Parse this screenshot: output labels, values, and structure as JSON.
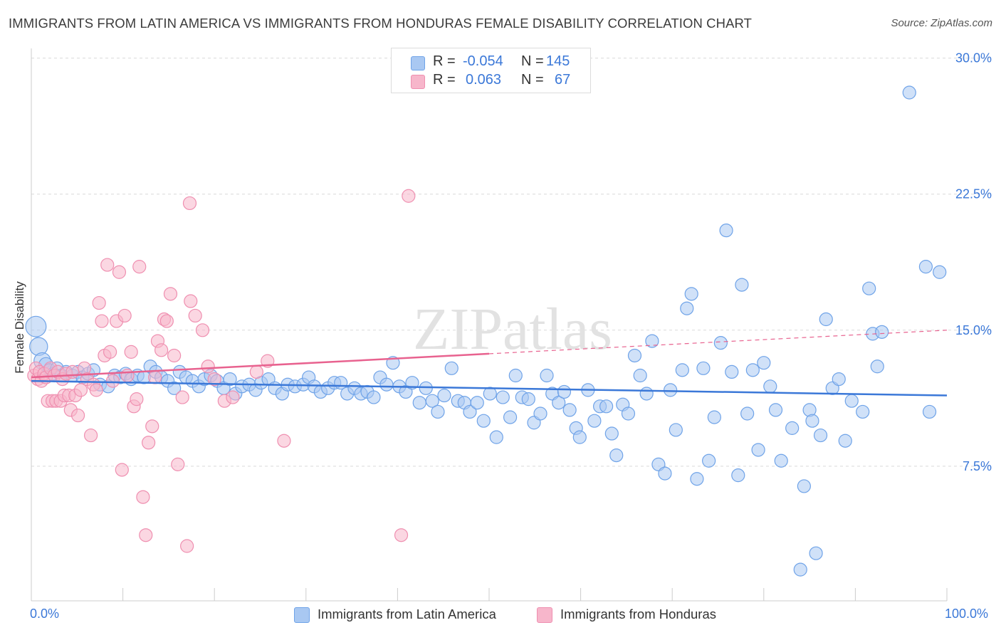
{
  "title": "IMMIGRANTS FROM LATIN AMERICA VS IMMIGRANTS FROM HONDURAS FEMALE DISABILITY CORRELATION CHART",
  "source": "Source: ZipAtlas.com",
  "watermark": "ZIPatlas",
  "legend_top": {
    "rows": [
      {
        "r_label": "R =",
        "r_value": "-0.054",
        "n_label": "N =",
        "n_value": "145",
        "color": "#a9c8f2"
      },
      {
        "r_label": "R =",
        "r_value": "0.063",
        "n_label": "N =",
        "n_value": "67",
        "color": "#f7b6cb"
      }
    ]
  },
  "chart_data": {
    "type": "scatter",
    "ylabel": "Female Disability",
    "xlim": [
      0,
      100
    ],
    "ylim": [
      0,
      30.5
    ],
    "x_tick_labels": {
      "left": "0.0%",
      "right": "100.0%"
    },
    "y_ticks": [
      {
        "value": 7.5,
        "label": "7.5%"
      },
      {
        "value": 15.0,
        "label": "15.0%"
      },
      {
        "value": 22.5,
        "label": "22.5%"
      },
      {
        "value": 30.0,
        "label": "30.0%"
      }
    ],
    "grid": "horizontal dashed",
    "series": [
      {
        "name": "Immigrants from Latin America",
        "color": "#6fa3e8",
        "fill": "#a9c8f2",
        "trend": {
          "x0": 0,
          "y0": 12.2,
          "x1": 100,
          "y1": 11.4,
          "color": "#3b78d8"
        },
        "points": [
          [
            0.5,
            15.2,
            1.6
          ],
          [
            0.8,
            14.1,
            1.4
          ],
          [
            1.2,
            13.3,
            1.3
          ],
          [
            1.6,
            13.1,
            1.1
          ],
          [
            2.0,
            12.8,
            1.0
          ],
          [
            2.4,
            12.6,
            1.0
          ],
          [
            2.8,
            12.9,
            1.0
          ],
          [
            3.3,
            12.5,
            1.0
          ],
          [
            3.8,
            12.7,
            1.0
          ],
          [
            4.5,
            12.5,
            1.0
          ],
          [
            5.1,
            12.7,
            1.0
          ],
          [
            5.6,
            12.4,
            1.0
          ],
          [
            6.2,
            12.6,
            1.0
          ],
          [
            6.8,
            12.8,
            1.0
          ],
          [
            7.5,
            12.0,
            1.0
          ],
          [
            8.4,
            11.9,
            1.0
          ],
          [
            9.1,
            12.5,
            1.0
          ],
          [
            9.7,
            12.4,
            1.0
          ],
          [
            10.3,
            12.6,
            1.0
          ],
          [
            10.9,
            12.3,
            1.0
          ],
          [
            11.6,
            12.5,
            1.0
          ],
          [
            12.3,
            12.4,
            1.0
          ],
          [
            13.0,
            13.0,
            1.0
          ],
          [
            13.6,
            12.7,
            1.0
          ],
          [
            14.2,
            12.4,
            1.0
          ],
          [
            14.9,
            12.2,
            1.0
          ],
          [
            15.6,
            11.8,
            1.0
          ],
          [
            16.2,
            12.7,
            1.0
          ],
          [
            16.9,
            12.4,
            1.0
          ],
          [
            17.6,
            12.2,
            1.0
          ],
          [
            18.3,
            11.9,
            1.0
          ],
          [
            18.9,
            12.3,
            1.0
          ],
          [
            19.6,
            12.5,
            1.0
          ],
          [
            20.3,
            12.2,
            1.0
          ],
          [
            21.0,
            11.8,
            1.0
          ],
          [
            21.7,
            12.3,
            1.0
          ],
          [
            22.3,
            11.5,
            1.0
          ],
          [
            23.0,
            11.9,
            1.0
          ],
          [
            23.8,
            12.0,
            1.0
          ],
          [
            24.5,
            11.7,
            1.0
          ],
          [
            25.1,
            12.1,
            1.0
          ],
          [
            25.9,
            12.3,
            1.0
          ],
          [
            26.6,
            11.8,
            1.0
          ],
          [
            27.4,
            11.5,
            1.0
          ],
          [
            28.0,
            12.0,
            1.0
          ],
          [
            28.8,
            11.9,
            1.0
          ],
          [
            29.7,
            12.0,
            1.0
          ],
          [
            30.3,
            12.4,
            1.0
          ],
          [
            30.9,
            11.9,
            1.0
          ],
          [
            31.6,
            11.6,
            1.0
          ],
          [
            32.4,
            11.8,
            1.0
          ],
          [
            33.1,
            12.1,
            1.0
          ],
          [
            33.8,
            12.1,
            1.0
          ],
          [
            34.5,
            11.5,
            1.0
          ],
          [
            35.3,
            11.8,
            1.0
          ],
          [
            36.0,
            11.5,
            1.0
          ],
          [
            36.7,
            11.6,
            1.0
          ],
          [
            37.4,
            11.3,
            1.0
          ],
          [
            38.1,
            12.4,
            1.0
          ],
          [
            38.8,
            12.0,
            1.0
          ],
          [
            39.5,
            13.2,
            1.0
          ],
          [
            40.2,
            11.9,
            1.0
          ],
          [
            40.9,
            11.6,
            1.0
          ],
          [
            41.6,
            12.1,
            1.0
          ],
          [
            42.4,
            11.0,
            1.0
          ],
          [
            43.1,
            11.8,
            1.0
          ],
          [
            43.8,
            11.1,
            1.0
          ],
          [
            44.4,
            10.5,
            1.0
          ],
          [
            45.1,
            11.4,
            1.0
          ],
          [
            45.9,
            12.9,
            1.0
          ],
          [
            46.6,
            11.1,
            1.0
          ],
          [
            47.3,
            11.0,
            1.0
          ],
          [
            47.9,
            10.5,
            1.0
          ],
          [
            48.7,
            11.0,
            1.0
          ],
          [
            49.4,
            10.0,
            1.0
          ],
          [
            50.1,
            11.5,
            1.0
          ],
          [
            50.8,
            9.1,
            1.0
          ],
          [
            51.5,
            11.3,
            1.0
          ],
          [
            52.3,
            10.2,
            1.0
          ],
          [
            52.9,
            12.5,
            1.0
          ],
          [
            53.6,
            11.3,
            1.0
          ],
          [
            54.3,
            11.2,
            1.0
          ],
          [
            54.9,
            9.9,
            1.0
          ],
          [
            55.6,
            10.4,
            1.0
          ],
          [
            56.3,
            12.5,
            1.0
          ],
          [
            56.9,
            11.5,
            1.0
          ],
          [
            57.6,
            11.0,
            1.0
          ],
          [
            58.2,
            11.6,
            1.0
          ],
          [
            58.8,
            10.6,
            1.0
          ],
          [
            59.5,
            9.6,
            1.0
          ],
          [
            59.9,
            9.1,
            1.0
          ],
          [
            60.8,
            11.7,
            1.0
          ],
          [
            61.5,
            10.0,
            1.0
          ],
          [
            62.1,
            10.8,
            1.0
          ],
          [
            62.8,
            10.8,
            1.0
          ],
          [
            63.4,
            9.3,
            1.0
          ],
          [
            63.9,
            8.1,
            1.0
          ],
          [
            64.6,
            10.9,
            1.0
          ],
          [
            65.2,
            10.4,
            1.0
          ],
          [
            65.9,
            13.6,
            1.0
          ],
          [
            66.5,
            12.5,
            1.0
          ],
          [
            67.2,
            11.5,
            1.0
          ],
          [
            67.8,
            14.4,
            1.0
          ],
          [
            68.5,
            7.6,
            1.0
          ],
          [
            69.2,
            7.1,
            1.0
          ],
          [
            69.8,
            11.7,
            1.0
          ],
          [
            70.4,
            9.5,
            1.0
          ],
          [
            71.1,
            12.8,
            1.0
          ],
          [
            71.6,
            16.2,
            1.0
          ],
          [
            72.1,
            17.0,
            1.0
          ],
          [
            72.7,
            6.8,
            1.0
          ],
          [
            73.4,
            12.9,
            1.0
          ],
          [
            74.0,
            7.8,
            1.0
          ],
          [
            74.6,
            10.2,
            1.0
          ],
          [
            75.3,
            14.3,
            1.0
          ],
          [
            75.9,
            20.5,
            1.0
          ],
          [
            76.5,
            12.7,
            1.0
          ],
          [
            77.2,
            7.0,
            1.0
          ],
          [
            77.6,
            17.5,
            1.0
          ],
          [
            78.2,
            10.4,
            1.0
          ],
          [
            78.8,
            12.8,
            1.0
          ],
          [
            79.4,
            8.4,
            1.0
          ],
          [
            80.0,
            13.2,
            1.0
          ],
          [
            80.7,
            11.9,
            1.0
          ],
          [
            81.3,
            10.6,
            1.0
          ],
          [
            81.9,
            7.8,
            1.0
          ],
          [
            83.1,
            9.6,
            1.0
          ],
          [
            84.4,
            6.4,
            1.0
          ],
          [
            84.0,
            1.8,
            1.0
          ],
          [
            85.0,
            10.6,
            1.0
          ],
          [
            85.3,
            10.0,
            1.0
          ],
          [
            85.7,
            2.7,
            1.0
          ],
          [
            86.2,
            9.2,
            1.0
          ],
          [
            86.8,
            15.6,
            1.0
          ],
          [
            87.5,
            11.8,
            1.0
          ],
          [
            88.2,
            12.3,
            1.0
          ],
          [
            88.9,
            8.9,
            1.0
          ],
          [
            89.6,
            11.1,
            1.0
          ],
          [
            90.8,
            10.5,
            1.0
          ],
          [
            91.5,
            17.3,
            1.0
          ],
          [
            91.9,
            14.8,
            1.0
          ],
          [
            92.4,
            13.0,
            1.0
          ],
          [
            92.9,
            14.9,
            1.0
          ],
          [
            95.9,
            28.1,
            1.0
          ],
          [
            97.7,
            18.5,
            1.0
          ],
          [
            98.1,
            10.5,
            1.0
          ],
          [
            99.2,
            18.2,
            1.0
          ]
        ]
      },
      {
        "name": "Immigrants from Honduras",
        "color": "#ef8fb0",
        "fill": "#f7b6cb",
        "trend": {
          "x0": 0,
          "y0": 12.4,
          "x1": 50,
          "y1": 13.7,
          "dash_x1": 100,
          "dash_y1": 15.0,
          "color": "#e8628f"
        },
        "points": [
          [
            0.3,
            12.5,
            1.0
          ],
          [
            0.5,
            12.9,
            1.0
          ],
          [
            0.7,
            12.3,
            1.0
          ],
          [
            0.9,
            12.7,
            1.0
          ],
          [
            1.1,
            12.2,
            1.0
          ],
          [
            1.4,
            12.6,
            1.0
          ],
          [
            1.6,
            12.4,
            1.0
          ],
          [
            1.8,
            11.1,
            1.0
          ],
          [
            2.1,
            12.9,
            1.0
          ],
          [
            2.3,
            11.1,
            1.0
          ],
          [
            2.5,
            12.5,
            1.0
          ],
          [
            2.7,
            11.1,
            1.0
          ],
          [
            2.9,
            12.7,
            1.0
          ],
          [
            3.2,
            11.1,
            1.0
          ],
          [
            3.4,
            12.3,
            1.0
          ],
          [
            3.6,
            11.4,
            1.0
          ],
          [
            3.8,
            12.6,
            1.0
          ],
          [
            4.1,
            11.4,
            1.0
          ],
          [
            4.3,
            10.6,
            1.0
          ],
          [
            4.5,
            12.7,
            1.0
          ],
          [
            4.8,
            11.4,
            1.0
          ],
          [
            5.1,
            10.3,
            1.0
          ],
          [
            5.4,
            11.7,
            1.0
          ],
          [
            5.8,
            12.9,
            1.0
          ],
          [
            6.1,
            12.3,
            1.0
          ],
          [
            6.5,
            9.2,
            1.0
          ],
          [
            6.8,
            12.0,
            1.0
          ],
          [
            7.1,
            11.7,
            1.0
          ],
          [
            7.4,
            16.5,
            1.0
          ],
          [
            7.7,
            15.5,
            1.0
          ],
          [
            8.0,
            13.6,
            1.0
          ],
          [
            8.3,
            18.6,
            1.0
          ],
          [
            8.6,
            13.8,
            1.0
          ],
          [
            8.9,
            12.2,
            1.0
          ],
          [
            9.3,
            15.5,
            1.0
          ],
          [
            9.6,
            18.2,
            1.0
          ],
          [
            9.9,
            7.3,
            1.0
          ],
          [
            10.2,
            15.8,
            1.0
          ],
          [
            10.5,
            12.5,
            1.0
          ],
          [
            10.9,
            13.8,
            1.0
          ],
          [
            11.2,
            10.8,
            1.0
          ],
          [
            11.5,
            11.2,
            1.0
          ],
          [
            11.8,
            18.5,
            1.0
          ],
          [
            12.2,
            5.8,
            1.0
          ],
          [
            12.5,
            3.7,
            1.0
          ],
          [
            12.8,
            8.8,
            1.0
          ],
          [
            13.2,
            9.7,
            1.0
          ],
          [
            13.5,
            12.4,
            1.0
          ],
          [
            13.8,
            14.4,
            1.0
          ],
          [
            14.2,
            13.9,
            1.0
          ],
          [
            14.5,
            15.6,
            1.0
          ],
          [
            14.8,
            15.5,
            1.0
          ],
          [
            15.2,
            17.0,
            1.0
          ],
          [
            15.6,
            13.6,
            1.0
          ],
          [
            16.0,
            7.6,
            1.0
          ],
          [
            16.5,
            11.3,
            1.0
          ],
          [
            17.0,
            3.1,
            1.0
          ],
          [
            17.4,
            16.6,
            1.0
          ],
          [
            17.9,
            15.8,
            1.0
          ],
          [
            17.3,
            22.0,
            1.0
          ],
          [
            18.7,
            15.0,
            1.0
          ],
          [
            19.3,
            13.0,
            1.0
          ],
          [
            20.0,
            12.3,
            1.0
          ],
          [
            21.1,
            11.1,
            1.0
          ],
          [
            22.0,
            11.3,
            1.0
          ],
          [
            24.6,
            12.7,
            1.0
          ],
          [
            25.8,
            13.3,
            1.0
          ],
          [
            27.6,
            8.9,
            1.0
          ],
          [
            41.2,
            22.4,
            1.0
          ],
          [
            40.4,
            3.7,
            1.0
          ]
        ]
      }
    ]
  },
  "legend_bottom": [
    {
      "label": "Immigrants from Latin America",
      "color": "#a9c8f2"
    },
    {
      "label": "Immigrants from Honduras",
      "color": "#f7b6cb"
    }
  ]
}
